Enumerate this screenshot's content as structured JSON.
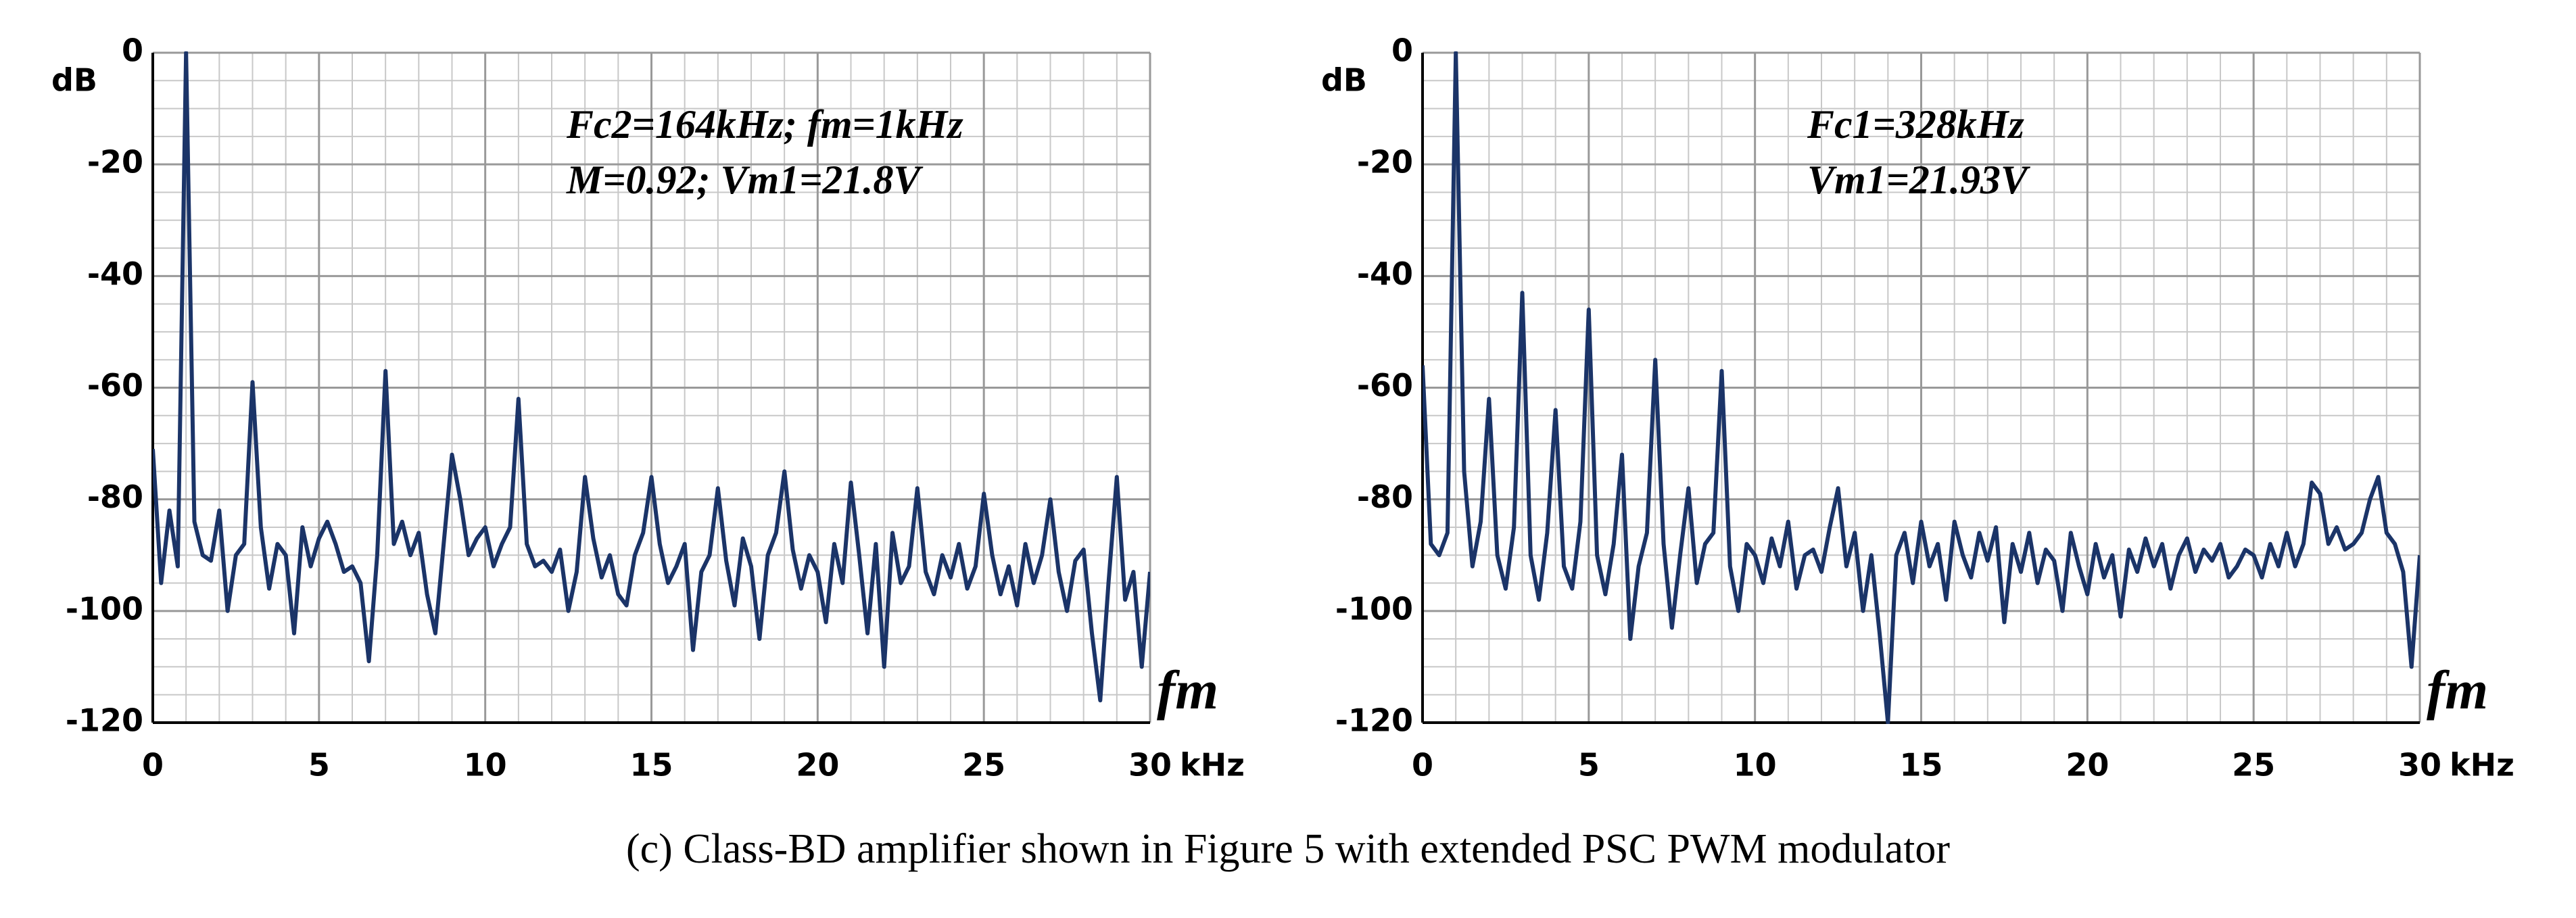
{
  "caption": "(c) Class-BD amplifier shown in Figure 5 with extended PSC PWM modulator",
  "chart_data": [
    {
      "type": "line",
      "ylabel": "dB",
      "xlabel": "fm",
      "xunit": "kHz",
      "annotations": [
        "Fc2=164kHz; fm=1kHz",
        "M=0.92;  Vm1=21.8V"
      ],
      "xlim": [
        0,
        30
      ],
      "ylim": [
        -120,
        0
      ],
      "xticks": [
        0,
        5,
        10,
        15,
        20,
        25,
        30
      ],
      "yticks": [
        0,
        -20,
        -40,
        -60,
        -80,
        -100,
        -120
      ],
      "grid": {
        "major": true,
        "minor": [
          1,
          5
        ]
      },
      "x": [
        0,
        0.25,
        0.5,
        0.75,
        1,
        1.25,
        1.5,
        1.75,
        2,
        2.25,
        2.5,
        2.75,
        3,
        3.25,
        3.5,
        3.75,
        4,
        4.25,
        4.5,
        4.75,
        5,
        5.25,
        5.5,
        5.75,
        6,
        6.25,
        6.5,
        6.75,
        7,
        7.25,
        7.5,
        7.75,
        8,
        8.25,
        8.5,
        8.75,
        9,
        9.25,
        9.5,
        9.75,
        10,
        10.25,
        10.5,
        10.75,
        11,
        11.25,
        11.5,
        11.75,
        12,
        12.25,
        12.5,
        12.75,
        13,
        13.25,
        13.5,
        13.75,
        14,
        14.25,
        14.5,
        14.75,
        15,
        15.25,
        15.5,
        15.75,
        16,
        16.25,
        16.5,
        16.75,
        17,
        17.25,
        17.5,
        17.75,
        18,
        18.25,
        18.5,
        18.75,
        19,
        19.25,
        19.5,
        19.75,
        20,
        20.25,
        20.5,
        20.75,
        21,
        21.25,
        21.5,
        21.75,
        22,
        22.25,
        22.5,
        22.75,
        23,
        23.25,
        23.5,
        23.75,
        24,
        24.25,
        24.5,
        24.75,
        25,
        25.25,
        25.5,
        25.75,
        26,
        26.25,
        26.5,
        26.75,
        27,
        27.25,
        27.5,
        27.75,
        28,
        28.25,
        28.5,
        28.75,
        29,
        29.25,
        29.5,
        29.75,
        30
      ],
      "series": [
        {
          "color": "#1b3468",
          "values": [
            -71,
            -95,
            -82,
            -92,
            0,
            -84,
            -90,
            -91,
            -82,
            -100,
            -90,
            -88,
            -59,
            -85,
            -96,
            -88,
            -90,
            -104,
            -85,
            -92,
            -87,
            -84,
            -88,
            -93,
            -92,
            -95,
            -109,
            -90,
            -57,
            -88,
            -84,
            -90,
            -86,
            -97,
            -104,
            -88,
            -72,
            -80,
            -90,
            -87,
            -85,
            -92,
            -88,
            -85,
            -62,
            -88,
            -92,
            -91,
            -93,
            -89,
            -100,
            -93,
            -76,
            -87,
            -94,
            -90,
            -97,
            -99,
            -90,
            -86,
            -76,
            -88,
            -95,
            -92,
            -88,
            -107,
            -93,
            -90,
            -78,
            -91,
            -99,
            -87,
            -92,
            -105,
            -90,
            -86,
            -75,
            -89,
            -96,
            -90,
            -93,
            -102,
            -88,
            -95,
            -77,
            -90,
            -104,
            -88,
            -110,
            -86,
            -95,
            -92,
            -78,
            -93,
            -97,
            -90,
            -94,
            -88,
            -96,
            -92,
            -79,
            -90,
            -97,
            -92,
            -99,
            -88,
            -95,
            -90,
            -80,
            -93,
            -100,
            -91,
            -89,
            -104,
            -116,
            -95,
            -76,
            -98,
            -93,
            -110,
            -93
          ]
        }
      ]
    },
    {
      "type": "line",
      "ylabel": "dB",
      "xlabel": "fm",
      "xunit": "kHz",
      "annotations": [
        "Fc1=328kHz",
        "Vm1=21.93V"
      ],
      "xlim": [
        0,
        30
      ],
      "ylim": [
        -120,
        0
      ],
      "xticks": [
        0,
        5,
        10,
        15,
        20,
        25,
        30
      ],
      "yticks": [
        0,
        -20,
        -40,
        -60,
        -80,
        -100,
        -120
      ],
      "grid": {
        "major": true,
        "minor": [
          1,
          5
        ]
      },
      "x": [
        0,
        0.25,
        0.5,
        0.75,
        1,
        1.25,
        1.5,
        1.75,
        2,
        2.25,
        2.5,
        2.75,
        3,
        3.25,
        3.5,
        3.75,
        4,
        4.25,
        4.5,
        4.75,
        5,
        5.25,
        5.5,
        5.75,
        6,
        6.25,
        6.5,
        6.75,
        7,
        7.25,
        7.5,
        7.75,
        8,
        8.25,
        8.5,
        8.75,
        9,
        9.25,
        9.5,
        9.75,
        10,
        10.25,
        10.5,
        10.75,
        11,
        11.25,
        11.5,
        11.75,
        12,
        12.25,
        12.5,
        12.75,
        13,
        13.25,
        13.5,
        13.75,
        14,
        14.25,
        14.5,
        14.75,
        15,
        15.25,
        15.5,
        15.75,
        16,
        16.25,
        16.5,
        16.75,
        17,
        17.25,
        17.5,
        17.75,
        18,
        18.25,
        18.5,
        18.75,
        19,
        19.25,
        19.5,
        19.75,
        20,
        20.25,
        20.5,
        20.75,
        21,
        21.25,
        21.5,
        21.75,
        22,
        22.25,
        22.5,
        22.75,
        23,
        23.25,
        23.5,
        23.75,
        24,
        24.25,
        24.5,
        24.75,
        25,
        25.25,
        25.5,
        25.75,
        26,
        26.25,
        26.5,
        26.75,
        27,
        27.25,
        27.5,
        27.75,
        28,
        28.25,
        28.5,
        28.75,
        29,
        29.25,
        29.5,
        29.75,
        30
      ],
      "series": [
        {
          "color": "#1b3468",
          "values": [
            -56,
            -88,
            -90,
            -86,
            0,
            -75,
            -92,
            -84,
            -62,
            -90,
            -96,
            -85,
            -43,
            -90,
            -98,
            -86,
            -64,
            -92,
            -96,
            -84,
            -46,
            -90,
            -97,
            -88,
            -72,
            -105,
            -92,
            -86,
            -55,
            -88,
            -103,
            -90,
            -78,
            -95,
            -88,
            -86,
            -57,
            -92,
            -100,
            -88,
            -90,
            -95,
            -87,
            -92,
            -84,
            -96,
            -90,
            -89,
            -93,
            -85,
            -78,
            -92,
            -86,
            -100,
            -90,
            -104,
            -120,
            -90,
            -86,
            -95,
            -84,
            -92,
            -88,
            -98,
            -84,
            -90,
            -94,
            -86,
            -91,
            -85,
            -102,
            -88,
            -93,
            -86,
            -95,
            -89,
            -91,
            -100,
            -86,
            -92,
            -97,
            -88,
            -94,
            -90,
            -101,
            -89,
            -93,
            -87,
            -92,
            -88,
            -96,
            -90,
            -87,
            -93,
            -89,
            -91,
            -88,
            -94,
            -92,
            -89,
            -90,
            -94,
            -88,
            -92,
            -86,
            -92,
            -88,
            -77,
            -79,
            -88,
            -85,
            -89,
            -88,
            -86,
            -80,
            -76,
            -86,
            -88,
            -93,
            -110,
            -90
          ]
        }
      ]
    }
  ]
}
